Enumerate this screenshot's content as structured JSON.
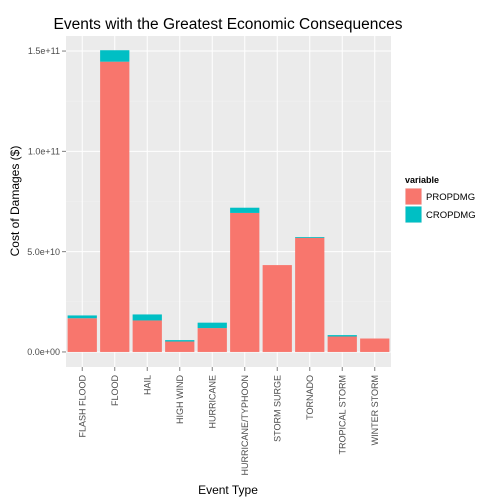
{
  "chart_data": {
    "type": "bar",
    "stacked": true,
    "title": "Events with the Greatest Economic Consequences",
    "xlabel": "Event Type",
    "ylabel": "Cost of Damages ($)",
    "categories": [
      "FLASH FLOOD",
      "FLOOD",
      "HAIL",
      "HIGH WIND",
      "HURRICANE",
      "HURRICANE/TYPHOON",
      "STORM SURGE",
      "TORNADO",
      "TROPICAL STORM",
      "WINTER STORM"
    ],
    "series": [
      {
        "name": "PROPDMG",
        "color": "#F8766D",
        "values": [
          16800000000.0,
          144700000000.0,
          15700000000.0,
          5200000000.0,
          11900000000.0,
          69300000000.0,
          43300000000.0,
          56900000000.0,
          7700000000.0,
          6700000000.0
        ]
      },
      {
        "name": "CROPDMG",
        "color": "#00BFC4",
        "values": [
          1400000000.0,
          5700000000.0,
          3000000000.0,
          700000000.0,
          2700000000.0,
          2600000000.0,
          0.0,
          400000000.0,
          700000000.0,
          0.0
        ]
      }
    ],
    "ylim": [
      -7500000000.0,
      157500000000.0
    ],
    "yticks": [
      0,
      50000000000.0,
      100000000000.0,
      150000000000.0
    ],
    "ytick_labels": [
      "0.0e+00",
      "5.0e+10",
      "1.0e+11",
      "1.5e+11"
    ],
    "legend": {
      "title": "variable",
      "position": "right"
    },
    "grid": true
  }
}
